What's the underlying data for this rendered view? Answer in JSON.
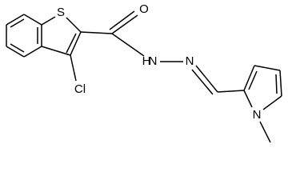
{
  "atoms": [
    {
      "label": "S"
    },
    {
      "label": "O"
    },
    {
      "label": "Cl"
    },
    {
      "label": "N"
    },
    {
      "label": "H"
    },
    {
      "label": "N"
    },
    {
      "label": "N"
    }
  ]
}
